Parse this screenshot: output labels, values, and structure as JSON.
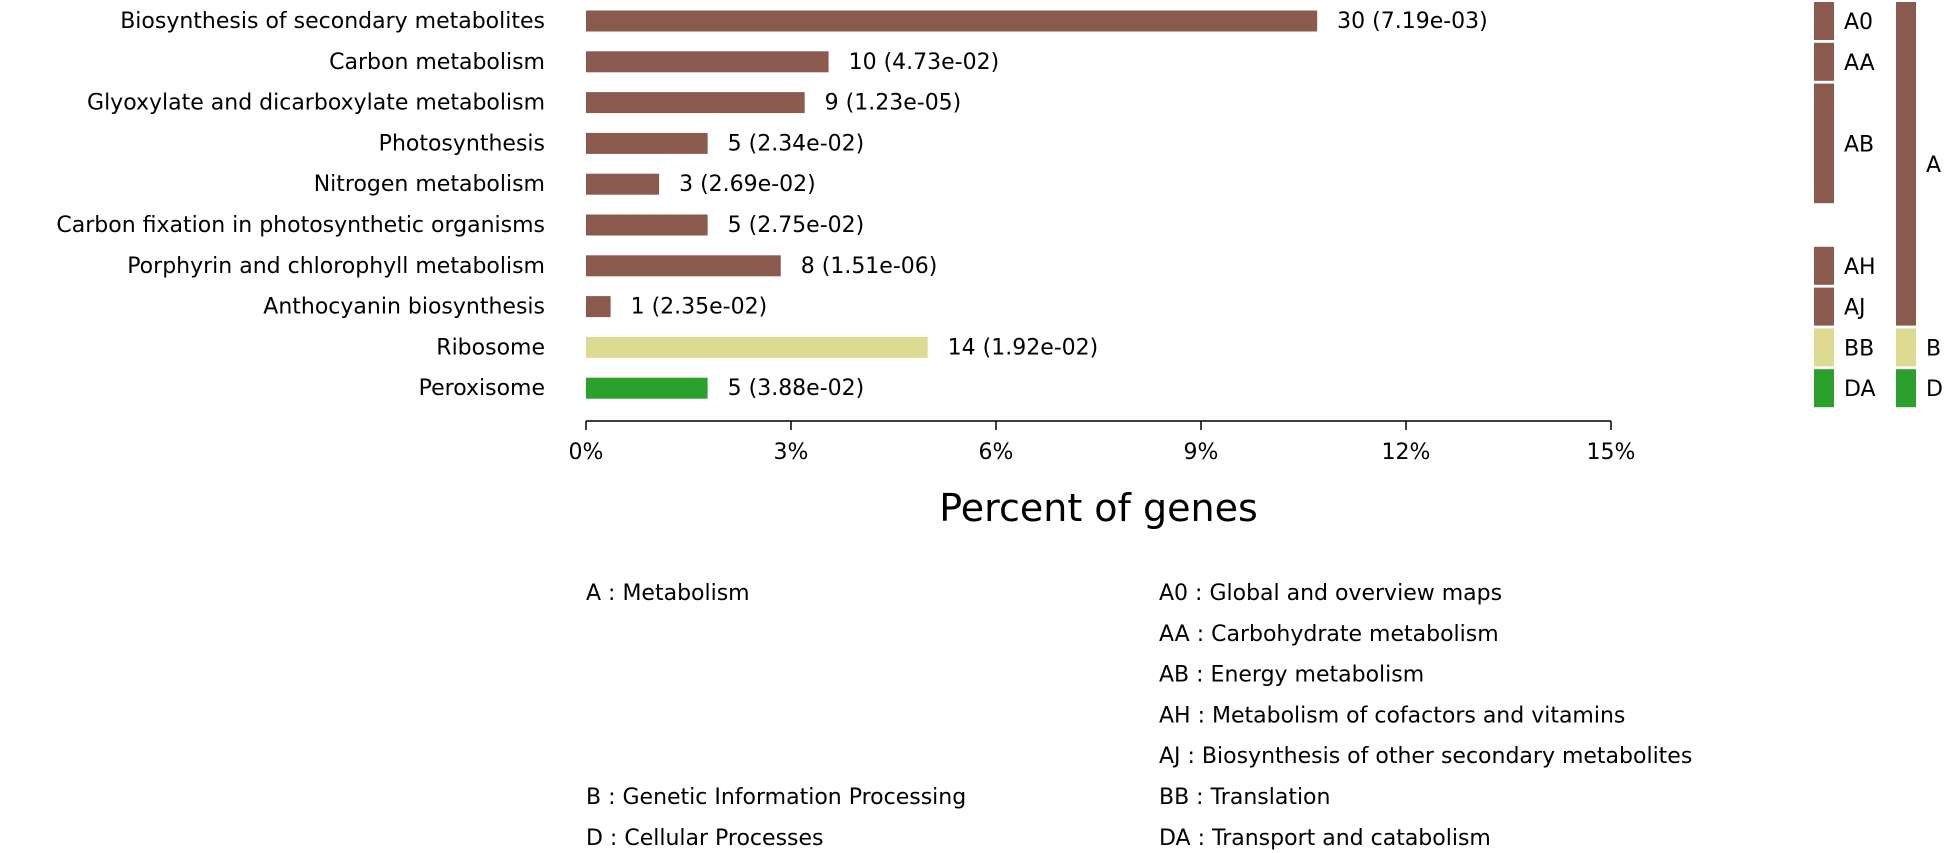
{
  "chart_data": {
    "type": "bar",
    "orientation": "horizontal",
    "xlabel": "Percent of genes",
    "xlim": [
      0,
      15
    ],
    "xticks": [
      "0%",
      "3%",
      "6%",
      "9%",
      "12%",
      "15%"
    ],
    "categories": [
      "Biosynthesis of secondary metabolites",
      "Carbon metabolism",
      "Glyoxylate and dicarboxylate metabolism",
      "Photosynthesis",
      "Nitrogen metabolism",
      "Carbon fixation in photosynthetic organisms",
      "Porphyrin and chlorophyll metabolism",
      "Anthocyanin biosynthesis",
      "Ribosome",
      "Peroxisome"
    ],
    "values": [
      10.7,
      3.55,
      3.2,
      1.78,
      1.07,
      1.78,
      2.85,
      0.36,
      5.0,
      1.78
    ],
    "data_labels": [
      "30 (7.19e-03)",
      "10 (4.73e-02)",
      "9 (1.23e-05)",
      "5 (2.34e-02)",
      "3 (2.69e-02)",
      "5 (2.75e-02)",
      "8 (1.51e-06)",
      "1 (2.35e-02)",
      "14 (1.92e-02)",
      "5 (3.88e-02)"
    ],
    "bar_groups": [
      "A",
      "A",
      "A",
      "A",
      "A",
      "A",
      "A",
      "A",
      "B",
      "D"
    ],
    "group_colors": {
      "A": "#8b5a4e",
      "B": "#dddb92",
      "D": "#2ca02c"
    },
    "subclasses": [
      {
        "code": "A0",
        "parent": "A",
        "first": 0,
        "last": 0
      },
      {
        "code": "AA",
        "parent": "A",
        "first": 1,
        "last": 1
      },
      {
        "code": "AB",
        "parent": "A",
        "first": 2,
        "last": 4
      },
      {
        "code": "AH",
        "parent": "A",
        "first": 6,
        "last": 6
      },
      {
        "code": "AJ",
        "parent": "A",
        "first": 7,
        "last": 7
      },
      {
        "code": "BB",
        "parent": "B",
        "first": 8,
        "last": 8
      },
      {
        "code": "DA",
        "parent": "D",
        "first": 9,
        "last": 9
      }
    ],
    "classes": [
      {
        "code": "A",
        "first": 0,
        "last": 7
      },
      {
        "code": "B",
        "first": 8,
        "last": 8
      },
      {
        "code": "D",
        "first": 9,
        "last": 9
      }
    ],
    "legend_left": [
      "A : Metabolism",
      "B : Genetic Information Processing",
      "D : Cellular Processes"
    ],
    "legend_right": [
      "A0 : Global and overview maps",
      "AA : Carbohydrate metabolism",
      "AB : Energy metabolism",
      "AH : Metabolism of cofactors and vitamins",
      "AJ : Biosynthesis of other secondary metabolites",
      "BB : Translation",
      "DA : Transport and catabolism"
    ]
  }
}
